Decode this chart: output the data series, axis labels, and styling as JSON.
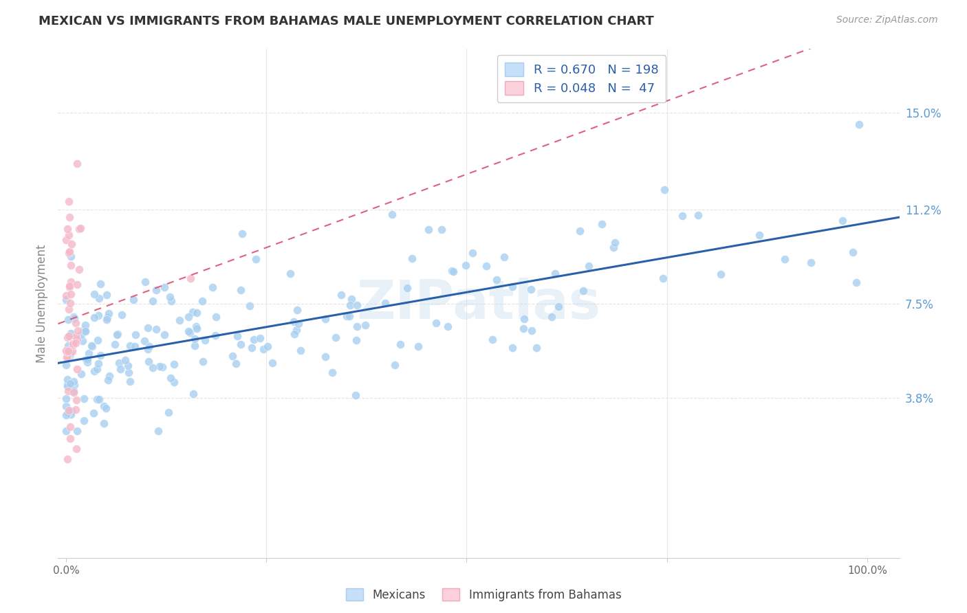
{
  "title": "MEXICAN VS IMMIGRANTS FROM BAHAMAS MALE UNEMPLOYMENT CORRELATION CHART",
  "source": "Source: ZipAtlas.com",
  "ylabel": "Male Unemployment",
  "watermark": "ZIPatlas",
  "xlim": [
    -0.01,
    1.04
  ],
  "ylim": [
    -0.025,
    0.175
  ],
  "yticks": [
    0.038,
    0.075,
    0.112,
    0.15
  ],
  "ytick_labels": [
    "3.8%",
    "7.5%",
    "11.2%",
    "15.0%"
  ],
  "blue_R": 0.67,
  "blue_N": 198,
  "pink_R": 0.048,
  "pink_N": 47,
  "blue_color": "#a8cff0",
  "pink_color": "#f5b8c8",
  "blue_line_color": "#2a5faa",
  "pink_line_color": "#e06080",
  "legend_blue_fill": "#c5dff8",
  "legend_pink_fill": "#fad0db",
  "title_color": "#333333",
  "source_color": "#999999",
  "axis_label_color": "#888888",
  "tick_color_right": "#5b9bd5",
  "grid_color": "#e0e0e0",
  "background_color": "#ffffff",
  "blue_seed": 42,
  "pink_seed": 7
}
